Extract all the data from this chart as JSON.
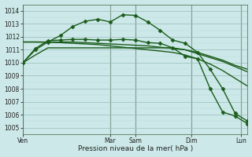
{
  "background_color": "#cce8e8",
  "grid_color_major": "#99bbbb",
  "grid_color_minor": "#bbdddd",
  "line_color": "#1a5c1a",
  "xlabel": "Pression niveau de la mer( hPa )",
  "ylim": [
    1004.5,
    1014.5
  ],
  "xlim": [
    0,
    18
  ],
  "yticks": [
    1005,
    1006,
    1007,
    1008,
    1009,
    1010,
    1011,
    1012,
    1013,
    1014
  ],
  "day_labels": [
    "Ven",
    "Mar",
    "Sam",
    "Dim",
    "Lun"
  ],
  "day_positions": [
    0,
    7,
    9,
    13.5,
    17.5
  ],
  "day_vline_positions": [
    0,
    7,
    9,
    13.5,
    17.5
  ],
  "series": [
    {
      "x": [
        0,
        1,
        2,
        3,
        4,
        5,
        6,
        7,
        8,
        9,
        10,
        11,
        12,
        13,
        14,
        15,
        16,
        17,
        18
      ],
      "y": [
        1010.0,
        1010.6,
        1011.15,
        1011.15,
        1011.15,
        1011.15,
        1011.15,
        1011.15,
        1011.15,
        1011.15,
        1011.15,
        1011.15,
        1011.15,
        1011.0,
        1010.7,
        1010.4,
        1010.1,
        1009.7,
        1009.3
      ],
      "marker": null,
      "linewidth": 1.0
    },
    {
      "x": [
        0,
        1,
        2,
        3,
        4,
        5,
        6,
        7,
        8,
        9,
        10,
        11,
        12,
        13,
        14,
        15,
        16,
        17,
        18
      ],
      "y": [
        1011.6,
        1011.6,
        1011.6,
        1011.6,
        1011.6,
        1011.55,
        1011.5,
        1011.45,
        1011.4,
        1011.35,
        1011.3,
        1011.2,
        1011.1,
        1011.0,
        1010.8,
        1010.5,
        1010.2,
        1009.8,
        1009.5
      ],
      "marker": null,
      "linewidth": 1.0
    },
    {
      "x": [
        0,
        1,
        2,
        3,
        4,
        5,
        6,
        7,
        8,
        9,
        10,
        11,
        12,
        13,
        14,
        15,
        16,
        17,
        18
      ],
      "y": [
        1011.6,
        1011.6,
        1011.58,
        1011.55,
        1011.5,
        1011.45,
        1011.4,
        1011.3,
        1011.2,
        1011.1,
        1011.0,
        1010.9,
        1010.8,
        1010.6,
        1010.3,
        1009.9,
        1009.4,
        1008.8,
        1008.2
      ],
      "marker": null,
      "linewidth": 1.0
    },
    {
      "x": [
        0,
        1,
        2,
        3,
        4,
        5,
        6,
        7,
        8,
        9,
        10,
        11,
        12,
        13,
        14,
        15,
        16,
        17,
        18
      ],
      "y": [
        1010.0,
        1011.0,
        1011.6,
        1012.1,
        1012.8,
        1013.2,
        1013.35,
        1013.15,
        1013.7,
        1013.65,
        1013.15,
        1012.5,
        1011.75,
        1011.5,
        1010.8,
        1009.5,
        1008.0,
        1006.1,
        1005.5
      ],
      "marker": "D",
      "markersize": 2.5,
      "linewidth": 1.0
    },
    {
      "x": [
        0,
        1,
        2,
        3,
        4,
        5,
        6,
        7,
        8,
        9,
        10,
        11,
        12,
        13,
        14,
        15,
        16,
        17,
        18
      ],
      "y": [
        1010.0,
        1011.1,
        1011.7,
        1011.75,
        1011.8,
        1011.8,
        1011.75,
        1011.75,
        1011.8,
        1011.75,
        1011.55,
        1011.5,
        1011.15,
        1010.5,
        1010.3,
        1008.0,
        1006.2,
        1005.9,
        1005.3
      ],
      "marker": "D",
      "markersize": 2.5,
      "linewidth": 1.0
    }
  ]
}
